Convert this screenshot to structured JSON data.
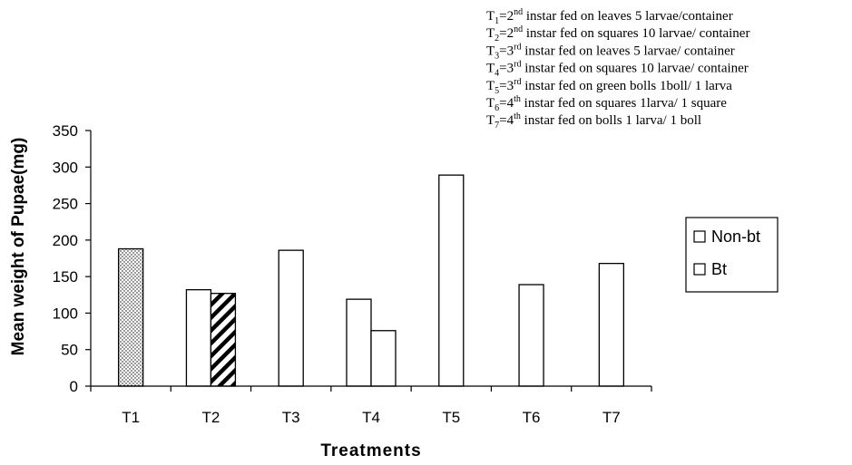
{
  "chart_data": {
    "type": "bar",
    "xlabel": "Treatments",
    "ylabel": "Mean weight of Pupae(mg)",
    "ylim": [
      0,
      350
    ],
    "yticks": [
      0,
      50,
      100,
      150,
      200,
      250,
      300,
      350
    ],
    "categories": [
      "T1",
      "T2",
      "T3",
      "T4",
      "T5",
      "T6",
      "T7"
    ],
    "series": [
      {
        "name": "Non-bt",
        "pattern": "none",
        "values": [
          null,
          132,
          186,
          119,
          289,
          139,
          168
        ]
      },
      {
        "name": "Bt",
        "pattern": "mixed",
        "values": [
          188,
          127,
          null,
          76,
          null,
          null,
          null
        ]
      }
    ],
    "bt_patterns": [
      "dots",
      "stripes",
      null,
      "none",
      null,
      null,
      null
    ],
    "legend": {
      "position": "right",
      "entries": [
        {
          "label": "Non-bt"
        },
        {
          "label": "Bt"
        }
      ]
    },
    "annotations": [
      {
        "id": "T",
        "sub": "1",
        "eq": "=2",
        "sup": "nd",
        "rest": " instar fed on leaves 5 larvae/container"
      },
      {
        "id": "T",
        "sub": "2",
        "eq": "=2",
        "sup": "nd",
        "rest": " instar fed on squares 10 larvae/ container"
      },
      {
        "id": "T",
        "sub": "3",
        "eq": "=3",
        "sup": "rd",
        "rest": " instar fed on leaves 5 larvae/ container"
      },
      {
        "id": "T",
        "sub": "4",
        "eq": "=3",
        "sup": "rd",
        "rest": " instar fed on squares 10 larvae/ container"
      },
      {
        "id": "T",
        "sub": "5",
        "eq": "=3",
        "sup": "rd",
        "rest": " instar fed on green bolls 1boll/ 1 larva"
      },
      {
        "id": "T",
        "sub": "6",
        "eq": "=4",
        "sup": "th",
        "rest": " instar fed on squares 1larva/ 1 square"
      },
      {
        "id": "T",
        "sub": "7",
        "eq": "=4",
        "sup": "th",
        "rest": " instar fed on bolls 1 larva/ 1 boll"
      }
    ],
    "grid": false
  }
}
